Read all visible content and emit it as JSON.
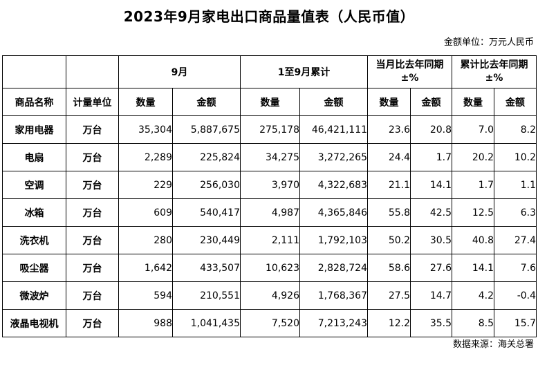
{
  "title": "2023年9月家电出口商品量值表（人民币值）",
  "unit_note": "金额单位：万元人民币",
  "source_note": "数据来源：海关总署",
  "header": {
    "group_sep": "9月",
    "group_ytd": "1至9月累计",
    "group_yoy_month_l1": "当月比去年同期",
    "group_yoy_month_l2": "±%",
    "group_yoy_cum_l1": "累计比去年同期",
    "group_yoy_cum_l2": "±%",
    "col_name": "商品名称",
    "col_unit": "计量单位",
    "qty": "数量",
    "amount": "金额"
  },
  "rows": [
    {
      "name": "家用电器",
      "unit": "万台",
      "sep_qty": "35,304",
      "sep_amt": "5,887,675",
      "ytd_qty": "275,178",
      "ytd_amt": "46,421,111",
      "mom_qty": "23.6",
      "mom_amt": "20.8",
      "cum_qty": "7.0",
      "cum_amt": "8.2"
    },
    {
      "name": "电扇",
      "unit": "万台",
      "sep_qty": "2,289",
      "sep_amt": "225,824",
      "ytd_qty": "34,275",
      "ytd_amt": "3,272,265",
      "mom_qty": "24.4",
      "mom_amt": "1.7",
      "cum_qty": "20.2",
      "cum_amt": "10.2"
    },
    {
      "name": "空调",
      "unit": "万台",
      "sep_qty": "229",
      "sep_amt": "256,030",
      "ytd_qty": "3,970",
      "ytd_amt": "4,322,683",
      "mom_qty": "21.1",
      "mom_amt": "14.1",
      "cum_qty": "1.7",
      "cum_amt": "1.1"
    },
    {
      "name": "冰箱",
      "unit": "万台",
      "sep_qty": "609",
      "sep_amt": "540,417",
      "ytd_qty": "4,987",
      "ytd_amt": "4,365,846",
      "mom_qty": "55.8",
      "mom_amt": "42.5",
      "cum_qty": "12.5",
      "cum_amt": "6.3"
    },
    {
      "name": "洗衣机",
      "unit": "万台",
      "sep_qty": "280",
      "sep_amt": "230,449",
      "ytd_qty": "2,111",
      "ytd_amt": "1,792,103",
      "mom_qty": "50.2",
      "mom_amt": "30.5",
      "cum_qty": "40.8",
      "cum_amt": "27.4"
    },
    {
      "name": "吸尘器",
      "unit": "万台",
      "sep_qty": "1,642",
      "sep_amt": "433,507",
      "ytd_qty": "10,623",
      "ytd_amt": "2,828,724",
      "mom_qty": "58.6",
      "mom_amt": "27.6",
      "cum_qty": "14.1",
      "cum_amt": "7.6"
    },
    {
      "name": "微波炉",
      "unit": "万台",
      "sep_qty": "594",
      "sep_amt": "210,551",
      "ytd_qty": "4,926",
      "ytd_amt": "1,768,367",
      "mom_qty": "27.5",
      "mom_amt": "14.7",
      "cum_qty": "4.2",
      "cum_amt": "-0.4"
    },
    {
      "name": "液晶电视机",
      "unit": "万台",
      "sep_qty": "988",
      "sep_amt": "1,041,435",
      "ytd_qty": "7,520",
      "ytd_amt": "7,213,243",
      "mom_qty": "12.2",
      "mom_amt": "35.5",
      "cum_qty": "8.5",
      "cum_amt": "15.7"
    }
  ]
}
